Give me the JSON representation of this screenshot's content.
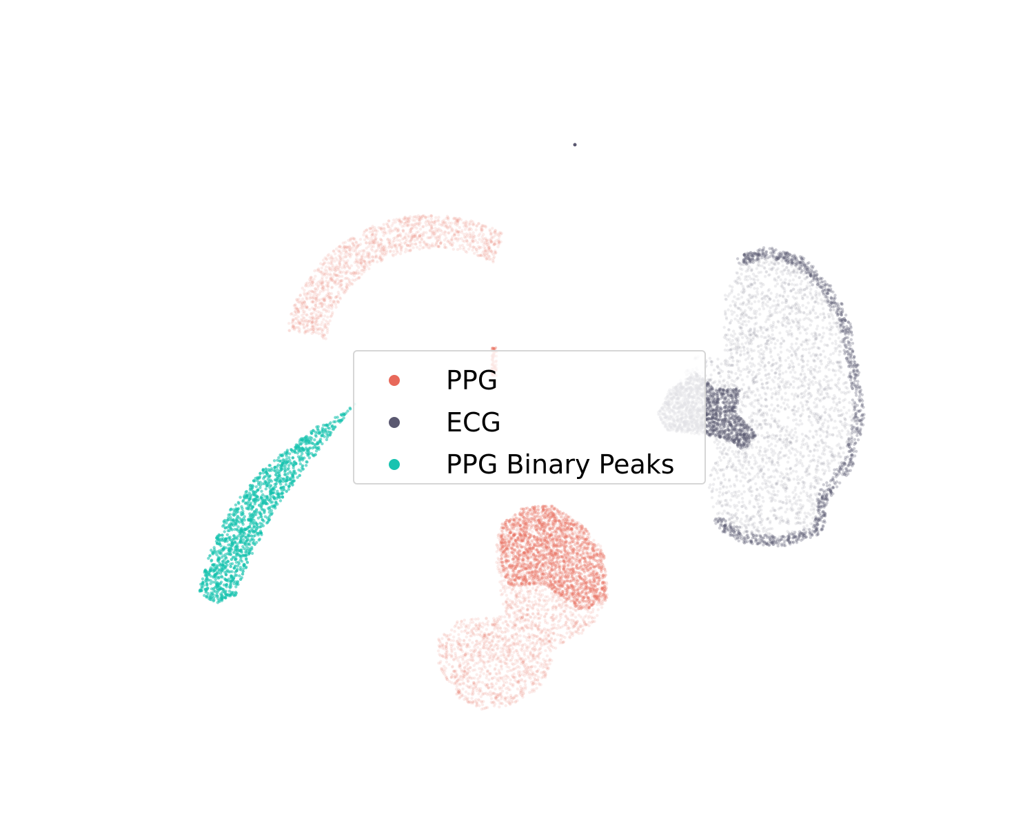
{
  "chart_data": {
    "type": "scatter",
    "title": "",
    "xlabel": "",
    "ylabel": "",
    "axes_visible": false,
    "grid": false,
    "legend": {
      "placement": "center",
      "entries": [
        {
          "label": "PPG",
          "color": "#e8695a"
        },
        {
          "label": "ECG",
          "color": "#5a5870"
        },
        {
          "label": "PPG Binary Peaks",
          "color": "#17c3b0"
        }
      ]
    },
    "xlim": [
      -10,
      10
    ],
    "ylim": [
      -8,
      8
    ],
    "series": [
      {
        "name": "PPG",
        "color": "#e8695a",
        "point_alpha": 0.12,
        "clusters": [
          {
            "shape": "crescent",
            "center": [
              -2.0,
              3.8
            ],
            "extent": [
              3.5,
              3.0
            ]
          },
          {
            "shape": "blob",
            "center": [
              0.5,
              -5.0
            ],
            "extent": [
              4.2,
              3.2
            ]
          }
        ]
      },
      {
        "name": "ECG",
        "color": "#5a5870",
        "point_alpha": 0.1,
        "clusters": [
          {
            "shape": "blob",
            "center": [
              5.8,
              0.6
            ],
            "extent": [
              3.6,
              4.8
            ]
          },
          {
            "shape": "point",
            "center": [
              1.4,
              6.5
            ],
            "extent": [
              0.05,
              0.05
            ]
          }
        ]
      },
      {
        "name": "PPG Binary Peaks",
        "color": "#17c3b0",
        "point_alpha": 0.15,
        "clusters": [
          {
            "shape": "streak",
            "center": [
              -6.0,
              -1.5
            ],
            "extent": [
              3.7,
              4.1
            ]
          }
        ]
      }
    ]
  }
}
